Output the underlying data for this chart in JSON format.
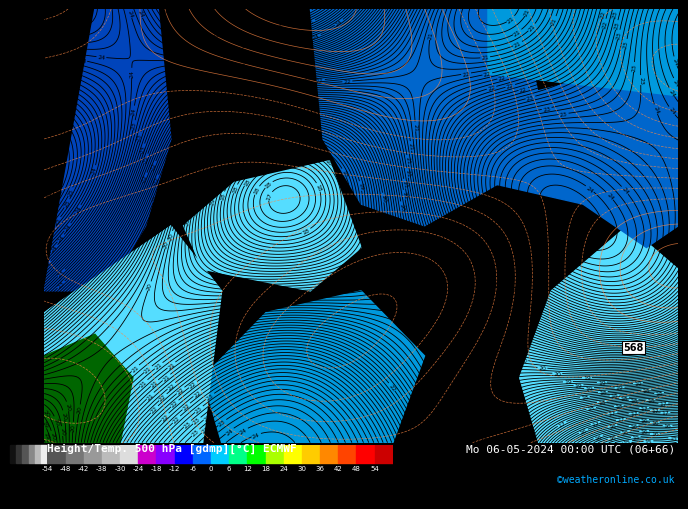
{
  "title_left": "Height/Temp. 500 hPa [gdmp][°C] ECMWF",
  "title_right": "Mo 06-05-2024 00:00 UTC (06+66)",
  "credit": "©weatheronline.co.uk",
  "colorbar_values": [
    -54,
    -48,
    -42,
    -38,
    -30,
    -24,
    -18,
    -12,
    -6,
    0,
    6,
    12,
    18,
    24,
    30,
    36,
    42,
    48,
    54
  ],
  "colorbar_colors": [
    "#555555",
    "#777777",
    "#999999",
    "#bbbbbb",
    "#dddddd",
    "#cc00cc",
    "#8800ff",
    "#0000ff",
    "#0066ff",
    "#00ccff",
    "#00ff88",
    "#00ff00",
    "#aaff00",
    "#ffff00",
    "#ffcc00",
    "#ff8800",
    "#ff4400",
    "#ff0000",
    "#cc0000"
  ],
  "bg_color_main": "#00d4ff",
  "bg_color_dark1": "#0066cc",
  "bg_color_dark2": "#0044bb",
  "bg_color_medium": "#0099dd",
  "bg_color_light": "#55ddff",
  "bg_color_teal": "#00ccdd",
  "dark_green": "#006600",
  "black_contour_color": "#000000",
  "orange_contour_color": "#ff8844",
  "label_color": "#000000",
  "label_568_color": "#000000",
  "bottom_bar_bg": "#000000",
  "text_color_white": "#ffffff",
  "text_color_cyan": "#00aaff"
}
